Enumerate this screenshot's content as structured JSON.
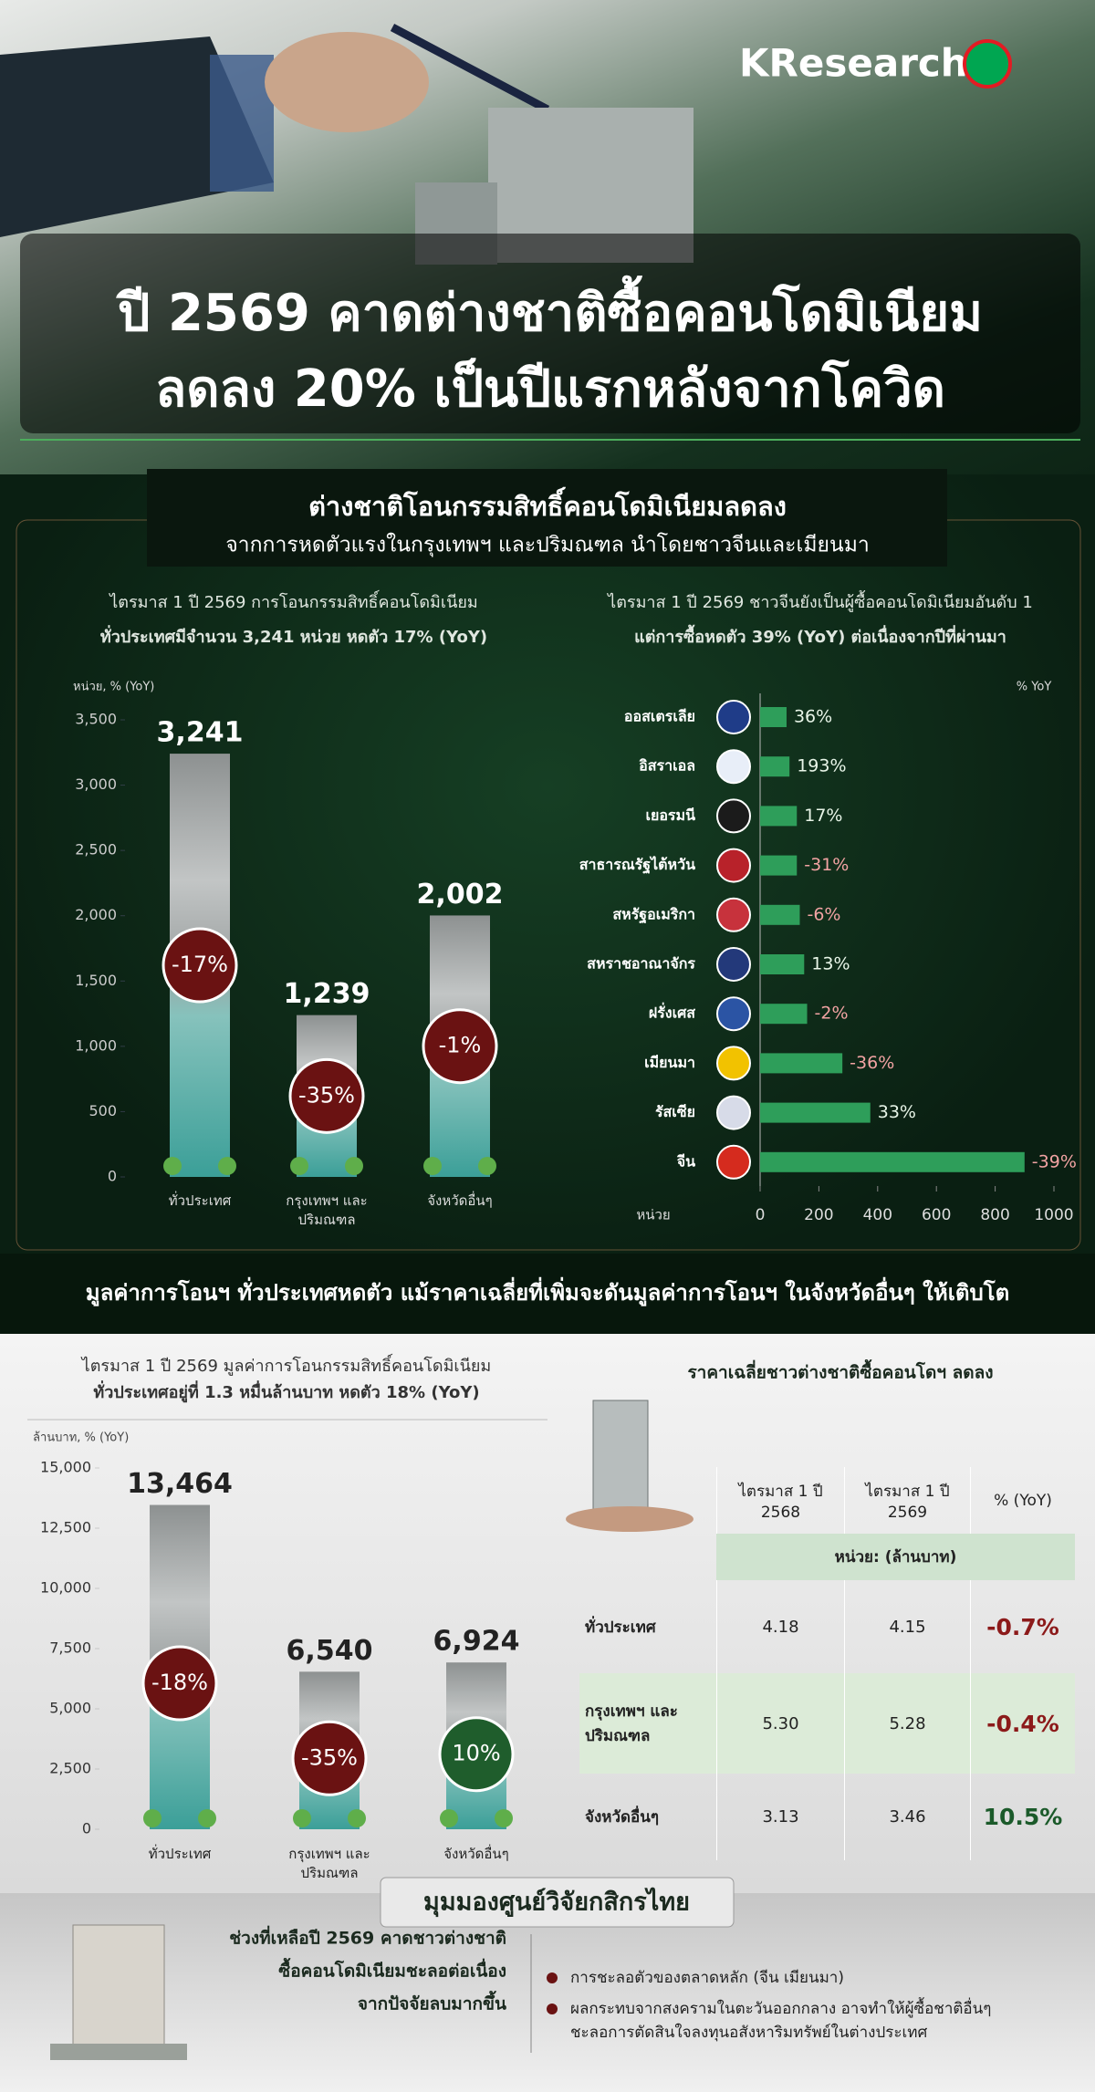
{
  "header": {
    "logo": "KResearch",
    "title_lines": [
      "ปี 2569 คาดต่างชาติซื้อคอนโดมิเนียม",
      "ลดลง 20% เป็นปีแรกหลังจากโควิด"
    ]
  },
  "section1": {
    "title": "ต่างชาติโอนกรรมสิทธิ์คอนโดมิเนียมลดลง",
    "subtitle": "จากการหดตัวแรงในกรุงเทพฯ และปริมณฑล นำโดยชาวจีนและเมียนมา"
  },
  "chart_data": [
    {
      "type": "bar",
      "note": [
        "ไตรมาส 1 ปี 2569 การโอนกรรมสิทธิ์คอนโดมิเนียม",
        "ทั่วประเทศมีจำนวน 3,241 หน่วย หดตัว 17% (YoY)"
      ],
      "y_label": "หน่วย, % (YoY)",
      "categories": [
        "ทั่วประเทศ",
        "กรุงเทพฯ และ ปริมณฑล",
        "จังหวัดอื่นๆ"
      ],
      "values": [
        3241,
        1239,
        2002
      ],
      "value_labels": [
        "3,241",
        "1,239",
        "2,002"
      ],
      "yoy": [
        -17,
        -35,
        -1
      ],
      "yoy_labels": [
        "-17%",
        "-35%",
        "-1%"
      ],
      "ylim": [
        0,
        3500
      ],
      "yticks": [
        0,
        500,
        {
          "value": 1000,
          "label": "1,000"
        },
        {
          "value": 1500,
          "label": "1,500"
        },
        {
          "value": 2000,
          "label": "2,000"
        },
        {
          "value": 2500,
          "label": "2,500"
        },
        {
          "value": 3000,
          "label": "3,000"
        },
        {
          "value": 3500,
          "label": "3,500"
        }
      ]
    },
    {
      "type": "hbar",
      "note": [
        "ไตรมาส 1 ปี 2569 ชาวจีนยังเป็นผู้ซื้อคอนโดมิเนียมอันดับ 1",
        "แต่การซื้อหดตัว 39% (YoY) ต่อเนื่องจากปีที่ผ่านมา"
      ],
      "x_label": "หน่วย",
      "unit_label": "% YoY",
      "categories": [
        "ออสเตรเลีย",
        "อิสราเอล",
        "เยอรมนี",
        "สาธารณรัฐไต้หวัน",
        "สหรัฐอเมริกา",
        "สหราชอาณาจักร",
        "ฝรั่งเศส",
        "เมียนมา",
        "รัสเซีย",
        "จีน"
      ],
      "values": [
        90,
        100,
        125,
        125,
        135,
        150,
        160,
        280,
        375,
        900
      ],
      "yoy": [
        36,
        193,
        17,
        -31,
        -6,
        13,
        -2,
        -36,
        33,
        -39
      ],
      "yoy_labels": [
        "36%",
        "193%",
        "17%",
        "-31%",
        "-6%",
        "13%",
        "-2%",
        "-36%",
        "33%",
        "-39%"
      ],
      "xlim": [
        0,
        1000
      ],
      "xticks": [
        0,
        200,
        400,
        600,
        800,
        1000
      ],
      "color": "#2e9e5a"
    },
    {
      "type": "bar",
      "note": [
        "ไตรมาส 1 ปี 2569 มูลค่าการโอนกรรมสิทธิ์คอนโดมิเนียม",
        "ทั่วประเทศอยู่ที่ 1.3 หมื่นล้านบาท หดตัว 18% (YoY)"
      ],
      "y_label": "ล้านบาท, % (YoY)",
      "categories": [
        "ทั่วประเทศ",
        "กรุงเทพฯ และ ปริมณฑล",
        "จังหวัดอื่นๆ"
      ],
      "values": [
        13464,
        6540,
        6924
      ],
      "value_labels": [
        "13,464",
        "6,540",
        "6,924"
      ],
      "yoy": [
        -18,
        -35,
        10
      ],
      "yoy_labels": [
        "-18%",
        "-35%",
        "10%"
      ],
      "ylim": [
        0,
        15000
      ],
      "yticks": [
        0,
        {
          "value": 2500,
          "label": "2,500"
        },
        {
          "value": 5000,
          "label": "5,000"
        },
        {
          "value": 7500,
          "label": "7,500"
        },
        {
          "value": 10000,
          "label": "10,000"
        },
        {
          "value": 12500,
          "label": "12,500"
        },
        {
          "value": 15000,
          "label": "15,000"
        }
      ]
    }
  ],
  "banner": "มูลค่าการโอนฯ ทั่วประเทศหดตัว แม้ราคาเฉลี่ยที่เพิ่มจะดันมูลค่าการโอนฯ ในจังหวัดอื่นๆ ให้เติบโต",
  "table": {
    "title": "ราคาเฉลี่ยชาวต่างชาติซื้อคอนโดฯ ลดลง",
    "columns": [
      "ไตรมาส 1 ปี 2568",
      "ไตรมาส 1 ปี 2569",
      "% (YoY)"
    ],
    "unit": "หน่วย: (ล้านบาท)",
    "rows": [
      [
        "ทั่วประเทศ",
        "4.18",
        "4.15",
        "-0.7%"
      ],
      [
        "กรุงเทพฯ และ ปริมณฑล",
        "5.30",
        "5.28",
        "-0.4%"
      ],
      [
        "จังหวัดอื่นๆ",
        "3.13",
        "3.46",
        "10.5%"
      ]
    ]
  },
  "outlook": {
    "title": "มุมมองศูนย์วิจัยกสิกรไทย",
    "summary": [
      "ช่วงที่เหลือปี 2569 คาดชาวต่างชาติ",
      "ซื้อคอนโดมิเนียมชะลอต่อเนื่อง",
      "จากปัจจัยลบมากขึ้น"
    ],
    "bullets": [
      [
        "การชะลอตัวของตลาดหลัก (จีน เมียนมา)"
      ],
      [
        "ผลกระทบจากสงครามในตะวันออกกลาง อาจทำให้ผู้ซื้อชาติอื่นๆ",
        "ชะลอการตัดสินใจลงทุนอสังหาริมทรัพย์ในต่างประเทศ"
      ]
    ]
  }
}
